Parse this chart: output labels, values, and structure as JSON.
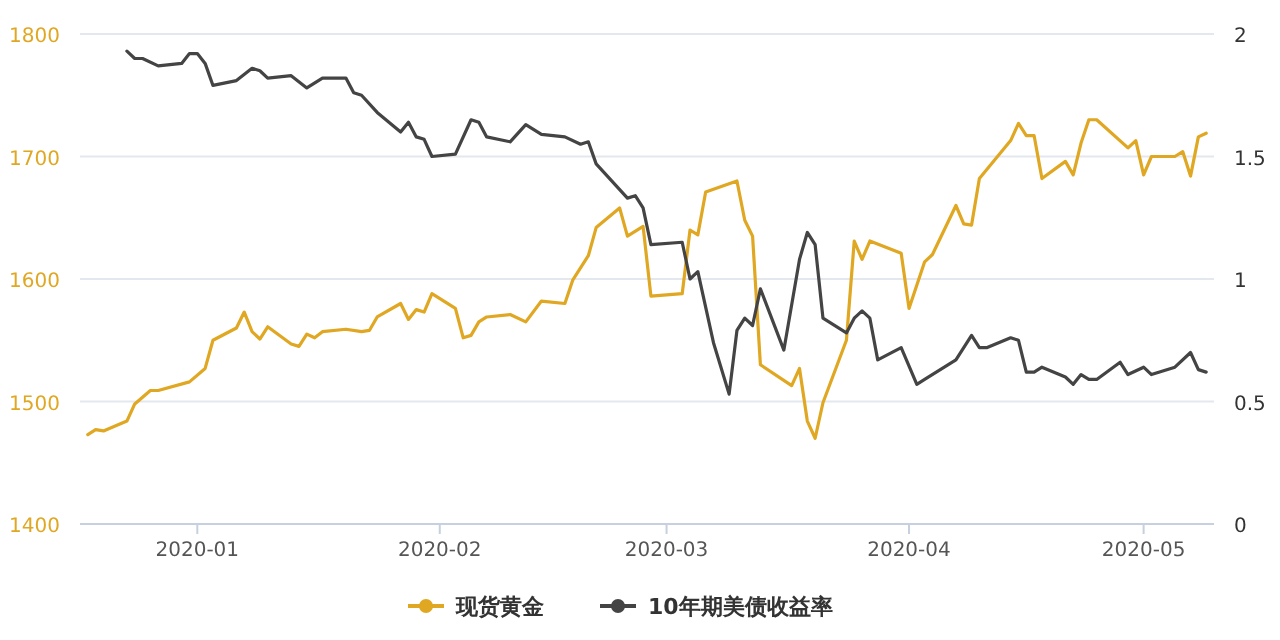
{
  "chart_data": {
    "type": "line",
    "xlim": [
      "2019-12-17",
      "2020-05-10"
    ],
    "xticks": [
      "2020-01",
      "2020-02",
      "2020-03",
      "2020-04",
      "2020-05"
    ],
    "ylim": [
      1400,
      1800
    ],
    "yticks": [
      1400,
      1500,
      1600,
      1700,
      1800
    ],
    "y2lim": [
      0,
      2
    ],
    "y2ticks": [
      0,
      0.5,
      1,
      1.5,
      2
    ],
    "grid": "y",
    "legend": "bottom",
    "series": [
      {
        "name": "现货黄金",
        "color": "#e0a722",
        "x": [
          "2019-12-18",
          "2019-12-19",
          "2019-12-20",
          "2019-12-23",
          "2019-12-24",
          "2019-12-26",
          "2019-12-27",
          "2019-12-31",
          "2020-01-02",
          "2020-01-03",
          "2020-01-06",
          "2020-01-07",
          "2020-01-08",
          "2020-01-09",
          "2020-01-10",
          "2020-01-13",
          "2020-01-14",
          "2020-01-15",
          "2020-01-16",
          "2020-01-17",
          "2020-01-20",
          "2020-01-22",
          "2020-01-23",
          "2020-01-24",
          "2020-01-27",
          "2020-01-28",
          "2020-01-29",
          "2020-01-30",
          "2020-01-31",
          "2020-02-03",
          "2020-02-04",
          "2020-02-05",
          "2020-02-06",
          "2020-02-07",
          "2020-02-10",
          "2020-02-12",
          "2020-02-14",
          "2020-02-17",
          "2020-02-18",
          "2020-02-20",
          "2020-02-21",
          "2020-02-24",
          "2020-02-25",
          "2020-02-27",
          "2020-02-28",
          "2020-03-03",
          "2020-03-04",
          "2020-03-05",
          "2020-03-06",
          "2020-03-10",
          "2020-03-11",
          "2020-03-12",
          "2020-03-13",
          "2020-03-17",
          "2020-03-18",
          "2020-03-19",
          "2020-03-20",
          "2020-03-21",
          "2020-03-24",
          "2020-03-25",
          "2020-03-26",
          "2020-03-27",
          "2020-03-31",
          "2020-04-01",
          "2020-04-03",
          "2020-04-04",
          "2020-04-07",
          "2020-04-08",
          "2020-04-09",
          "2020-04-10",
          "2020-04-14",
          "2020-04-15",
          "2020-04-16",
          "2020-04-17",
          "2020-04-18",
          "2020-04-21",
          "2020-04-22",
          "2020-04-23",
          "2020-04-24",
          "2020-04-25",
          "2020-04-29",
          "2020-04-30",
          "2020-05-01",
          "2020-05-02",
          "2020-05-05",
          "2020-05-06",
          "2020-05-07",
          "2020-05-08",
          "2020-05-09"
        ],
        "values": [
          1473,
          1477,
          1476,
          1484,
          1498,
          1509,
          1509,
          1516,
          1527,
          1550,
          1560,
          1573,
          1557,
          1551,
          1561,
          1547,
          1545,
          1555,
          1552,
          1557,
          1559,
          1557,
          1558,
          1569,
          1580,
          1567,
          1575,
          1573,
          1588,
          1576,
          1552,
          1554,
          1565,
          1569,
          1571,
          1565,
          1582,
          1580,
          1599,
          1619,
          1642,
          1658,
          1635,
          1643,
          1586,
          1588,
          1640,
          1636,
          1671,
          1680,
          1648,
          1635,
          1530,
          1513,
          1527,
          1484,
          1470,
          1499,
          1550,
          1631,
          1616,
          1631,
          1621,
          1576,
          1614,
          1620,
          1660,
          1645,
          1644,
          1682,
          1713,
          1727,
          1717,
          1717,
          1682,
          1696,
          1685,
          1711,
          1730,
          1730,
          1707,
          1713,
          1685,
          1700,
          1700,
          1704,
          1684,
          1716,
          1719
        ]
      },
      {
        "name": "10年期美债收益率",
        "color": "#444444",
        "axis": "y2",
        "x": [
          "2019-12-23",
          "2019-12-24",
          "2019-12-25",
          "2019-12-27",
          "2019-12-30",
          "2019-12-31",
          "2020-01-01",
          "2020-01-02",
          "2020-01-03",
          "2020-01-06",
          "2020-01-08",
          "2020-01-09",
          "2020-01-10",
          "2020-01-13",
          "2020-01-15",
          "2020-01-17",
          "2020-01-20",
          "2020-01-21",
          "2020-01-22",
          "2020-01-24",
          "2020-01-27",
          "2020-01-28",
          "2020-01-29",
          "2020-01-30",
          "2020-01-31",
          "2020-02-03",
          "2020-02-05",
          "2020-02-06",
          "2020-02-07",
          "2020-02-10",
          "2020-02-12",
          "2020-02-14",
          "2020-02-17",
          "2020-02-19",
          "2020-02-20",
          "2020-02-21",
          "2020-02-25",
          "2020-02-26",
          "2020-02-27",
          "2020-02-28",
          "2020-03-03",
          "2020-03-04",
          "2020-03-05",
          "2020-03-07",
          "2020-03-09",
          "2020-03-10",
          "2020-03-11",
          "2020-03-12",
          "2020-03-13",
          "2020-03-16",
          "2020-03-18",
          "2020-03-19",
          "2020-03-20",
          "2020-03-21",
          "2020-03-24",
          "2020-03-25",
          "2020-03-26",
          "2020-03-27",
          "2020-03-28",
          "2020-03-31",
          "2020-04-02",
          "2020-04-03",
          "2020-04-07",
          "2020-04-09",
          "2020-04-10",
          "2020-04-11",
          "2020-04-14",
          "2020-04-15",
          "2020-04-16",
          "2020-04-17",
          "2020-04-18",
          "2020-04-21",
          "2020-04-22",
          "2020-04-23",
          "2020-04-24",
          "2020-04-25",
          "2020-04-28",
          "2020-04-29",
          "2020-05-01",
          "2020-05-02",
          "2020-05-05",
          "2020-05-07",
          "2020-05-08",
          "2020-05-09"
        ],
        "values": [
          1.93,
          1.9,
          1.9,
          1.87,
          1.88,
          1.92,
          1.92,
          1.88,
          1.79,
          1.81,
          1.86,
          1.85,
          1.82,
          1.83,
          1.78,
          1.82,
          1.82,
          1.76,
          1.75,
          1.68,
          1.6,
          1.64,
          1.58,
          1.57,
          1.5,
          1.51,
          1.65,
          1.64,
          1.58,
          1.56,
          1.63,
          1.59,
          1.58,
          1.55,
          1.56,
          1.47,
          1.33,
          1.34,
          1.29,
          1.14,
          1.15,
          1.0,
          1.03,
          0.74,
          0.53,
          0.79,
          0.84,
          0.81,
          0.96,
          0.71,
          1.08,
          1.19,
          1.14,
          0.84,
          0.78,
          0.84,
          0.87,
          0.84,
          0.67,
          0.72,
          0.57,
          0.59,
          0.67,
          0.77,
          0.72,
          0.72,
          0.76,
          0.75,
          0.62,
          0.62,
          0.64,
          0.6,
          0.57,
          0.61,
          0.59,
          0.59,
          0.66,
          0.61,
          0.64,
          0.61,
          0.64,
          0.7,
          0.63,
          0.62
        ]
      }
    ]
  }
}
